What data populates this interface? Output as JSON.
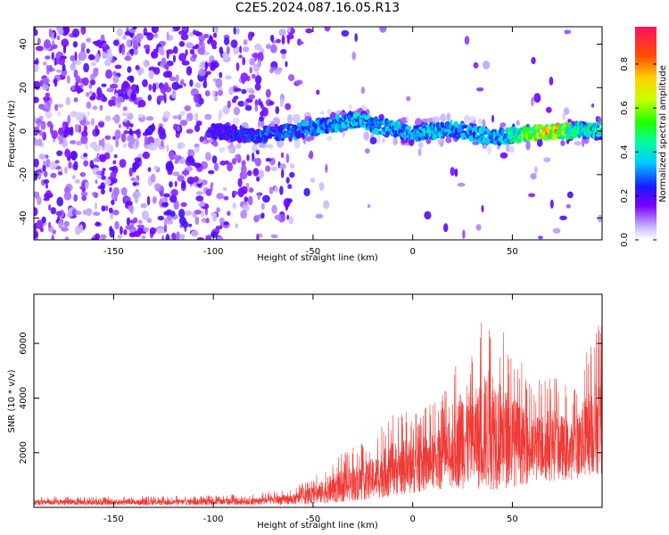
{
  "title": "C2E5.2024.087.16.05.R13",
  "colors": {
    "spectrogram_low": "#7a00ff",
    "spectrogram_mid": "#00e0ff",
    "spectrogram_high": "#ff2020",
    "snr_line": "#ef3a36"
  },
  "chart_data": [
    {
      "type": "heatmap",
      "name_hint": "spectrogram",
      "xlabel": "Height of straight line (km)",
      "ylabel": "Frequency (Hz)",
      "xlim": [
        -190,
        95
      ],
      "ylim": [
        -50,
        48
      ],
      "x_ticks": [
        -150,
        -100,
        -50,
        0,
        50
      ],
      "y_ticks": [
        -40,
        -20,
        0,
        20,
        40
      ],
      "colorbar": {
        "label": "Normalized spectral amplitude",
        "range": [
          0.0,
          0.97
        ],
        "ticks": [
          "0.0",
          "0.2",
          "0.4",
          "0.6",
          "0.8"
        ],
        "tick_values": [
          0.0,
          0.2,
          0.4,
          0.6,
          0.8
        ]
      },
      "band_center_hz": [
        [
          -190,
          0
        ],
        [
          -100,
          0
        ],
        [
          -80,
          -2
        ],
        [
          -60,
          0
        ],
        [
          -40,
          3
        ],
        [
          -30,
          5
        ],
        [
          -20,
          3
        ],
        [
          0,
          -1
        ],
        [
          10,
          0
        ],
        [
          20,
          1
        ],
        [
          40,
          -3
        ],
        [
          60,
          -1
        ],
        [
          75,
          0
        ],
        [
          95,
          1
        ]
      ],
      "peak_amplitude": [
        [
          -190,
          0.2
        ],
        [
          -100,
          0.25
        ],
        [
          -80,
          0.3
        ],
        [
          -60,
          0.35
        ],
        [
          -40,
          0.4
        ],
        [
          -30,
          0.45
        ],
        [
          -20,
          0.42
        ],
        [
          0,
          0.4
        ],
        [
          20,
          0.42
        ],
        [
          40,
          0.38
        ],
        [
          55,
          0.6
        ],
        [
          70,
          0.9
        ],
        [
          80,
          0.55
        ],
        [
          95,
          0.5
        ]
      ]
    },
    {
      "type": "line",
      "name_hint": "snr",
      "xlabel": "Height of straight line (km)",
      "ylabel": "SNR (10 * v/v)",
      "xlim": [
        -190,
        95
      ],
      "ylim": [
        0,
        7800
      ],
      "x_ticks": [
        -150,
        -100,
        -50,
        0,
        50
      ],
      "y_ticks": [
        2000,
        4000,
        6000
      ],
      "envelope_max": [
        [
          -190,
          400
        ],
        [
          -120,
          420
        ],
        [
          -80,
          500
        ],
        [
          -60,
          700
        ],
        [
          -50,
          1100
        ],
        [
          -40,
          1800
        ],
        [
          -20,
          2600
        ],
        [
          -10,
          3500
        ],
        [
          0,
          3600
        ],
        [
          10,
          3800
        ],
        [
          20,
          4600
        ],
        [
          25,
          6900
        ],
        [
          30,
          6000
        ],
        [
          35,
          7000
        ],
        [
          40,
          7800
        ],
        [
          45,
          6500
        ],
        [
          50,
          6000
        ],
        [
          60,
          4500
        ],
        [
          70,
          5200
        ],
        [
          80,
          4200
        ],
        [
          90,
          6400
        ],
        [
          95,
          7000
        ]
      ],
      "envelope_min": [
        [
          -190,
          80
        ],
        [
          -80,
          80
        ],
        [
          -60,
          100
        ],
        [
          -40,
          150
        ],
        [
          -20,
          300
        ],
        [
          0,
          500
        ],
        [
          20,
          700
        ],
        [
          40,
          600
        ],
        [
          60,
          900
        ],
        [
          80,
          1000
        ],
        [
          95,
          1200
        ]
      ]
    }
  ]
}
